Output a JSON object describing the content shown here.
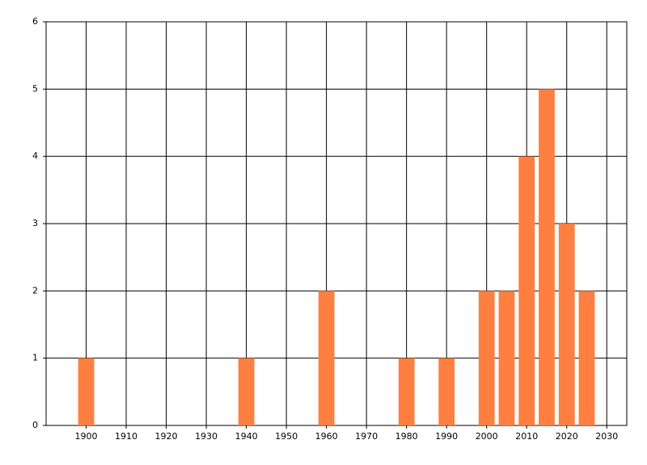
{
  "chart_data": {
    "type": "bar",
    "x": [
      1900,
      1940,
      1960,
      1980,
      1990,
      2000,
      2005,
      2010,
      2015,
      2020,
      2025
    ],
    "values": [
      1,
      1,
      2,
      1,
      1,
      2,
      2,
      4,
      5,
      3,
      2
    ],
    "color": "#ff7f40",
    "xlim": [
      1890,
      2035
    ],
    "xticks": [
      1900,
      1910,
      1920,
      1930,
      1940,
      1950,
      1960,
      1970,
      1980,
      1990,
      2000,
      2010,
      2020,
      2030
    ],
    "ylim": [
      0,
      6
    ],
    "yticks": [
      0,
      1,
      2,
      3,
      4,
      5,
      6
    ],
    "grid": true
  }
}
